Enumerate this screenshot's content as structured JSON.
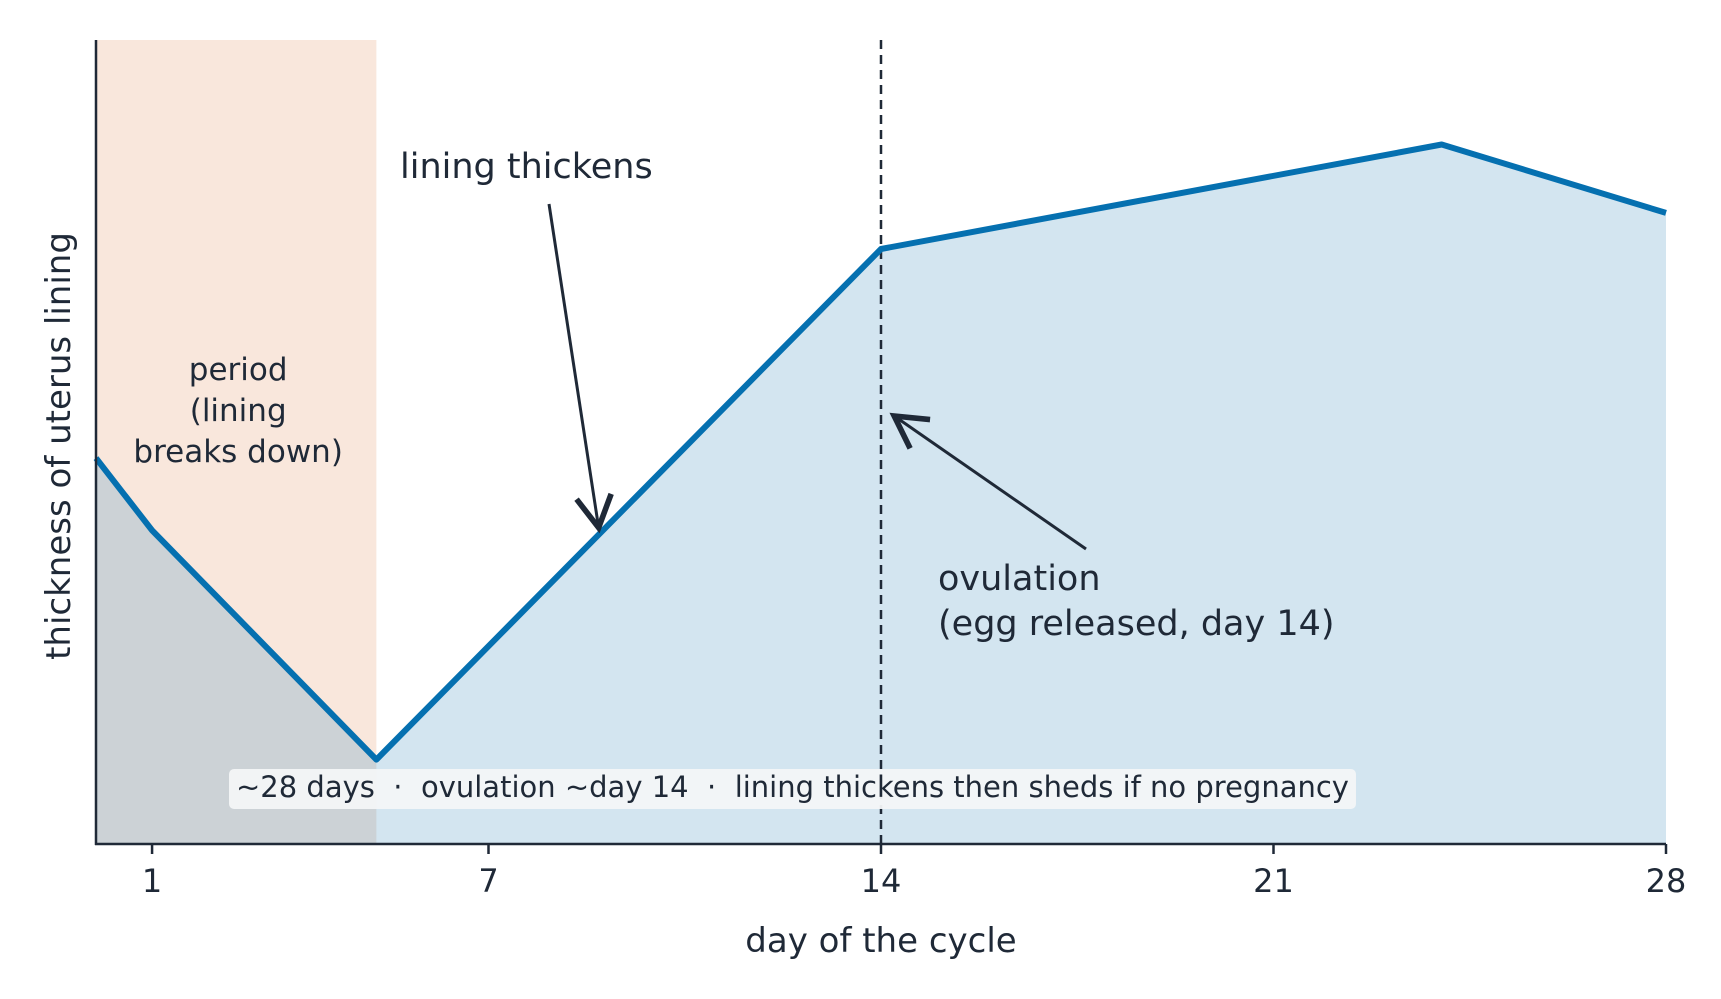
{
  "colors": {
    "line": "#0570b0",
    "area": "#d3e5f0",
    "period_band": "#f9e7dc",
    "axis": "#1f2937",
    "text": "#1f2937",
    "note_bg": "#f3f5f7"
  },
  "chart_data": {
    "type": "area",
    "title": "",
    "xlabel": "day of the cycle",
    "ylabel": "thickness of uterus lining",
    "xlim": [
      0,
      28
    ],
    "ylim": [
      0,
      1
    ],
    "xticks": [
      1,
      7,
      14,
      21,
      28
    ],
    "grid": false,
    "series": [
      {
        "x": [
          0,
          1,
          5,
          14,
          24,
          28
        ],
        "y": [
          0.48,
          0.39,
          0.105,
          0.74,
          0.87,
          0.785
        ]
      }
    ],
    "period_band": {
      "x_range": [
        0,
        5
      ],
      "label": "period\n(lining\nbreaks down)"
    },
    "ovulation_line": {
      "x": 14,
      "style": "dashed"
    },
    "annotations": [
      {
        "id": "lining",
        "text": "lining thickens",
        "arrow_to_x": 9
      },
      {
        "id": "ovulation",
        "text": "ovulation\n(egg released, day 14)",
        "arrow_to_x": 14.2
      }
    ],
    "note": "~28 days  ·  ovulation ~day 14  ·  lining thickens then sheds if no pregnancy"
  }
}
